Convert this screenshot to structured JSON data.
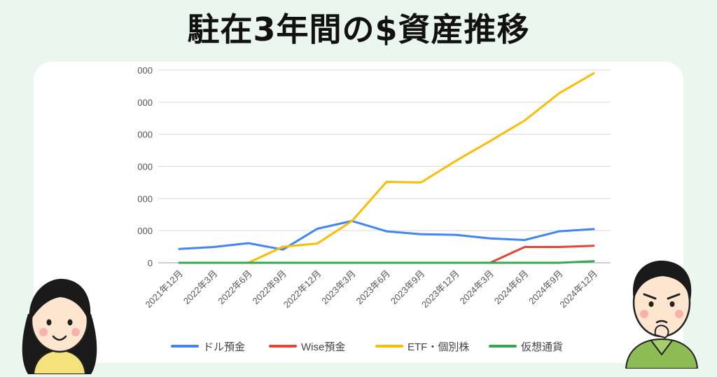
{
  "title": "駐在3年間の$資産推移",
  "chart_data": {
    "type": "line",
    "categories": [
      "2021年12月",
      "2022年3月",
      "2022年6月",
      "2022年9月",
      "2022年12月",
      "2023年3月",
      "2023年6月",
      "2023年9月",
      "2023年12月",
      "2024年3月",
      "2024年6月",
      "2024年9月",
      "2024年12月"
    ],
    "y_ticks": [
      0,
      1,
      2,
      3,
      4,
      5,
      6
    ],
    "y_tick_labels": [
      "0",
      "000",
      "000",
      "000",
      "000",
      "000",
      "000"
    ],
    "ylim": [
      0,
      6
    ],
    "grid": true,
    "legend_position": "bottom",
    "series": [
      {
        "name": "ドル預金",
        "color": "#4285f4",
        "values": [
          0.43,
          0.49,
          0.61,
          0.41,
          1.06,
          1.3,
          0.98,
          0.89,
          0.87,
          0.76,
          0.71,
          0.98,
          1.05
        ]
      },
      {
        "name": "Wise預金",
        "color": "#ea4335",
        "values": [
          null,
          null,
          null,
          null,
          null,
          null,
          null,
          null,
          null,
          0.0,
          0.49,
          0.49,
          0.53
        ]
      },
      {
        "name": "ETF・個別株",
        "color": "#fbbc04",
        "values": [
          null,
          null,
          0.0,
          0.5,
          0.6,
          1.3,
          2.52,
          2.5,
          3.17,
          3.79,
          4.43,
          5.28,
          5.9
        ]
      },
      {
        "name": "仮想通貨",
        "color": "#34a853",
        "values": [
          0.0,
          0.0,
          0.0,
          0.0,
          0.0,
          0.0,
          0.0,
          0.0,
          0.0,
          0.0,
          0.0,
          0.0,
          0.05
        ]
      }
    ]
  },
  "avatars": [
    {
      "name": "woman-avatar",
      "skin": "#fde5cf",
      "hair": "#1a1a1a",
      "shirt": "#f6e27a"
    },
    {
      "name": "man-avatar",
      "skin": "#fde5cf",
      "hair": "#1a1a1a",
      "shirt": "#8dbb54"
    }
  ]
}
